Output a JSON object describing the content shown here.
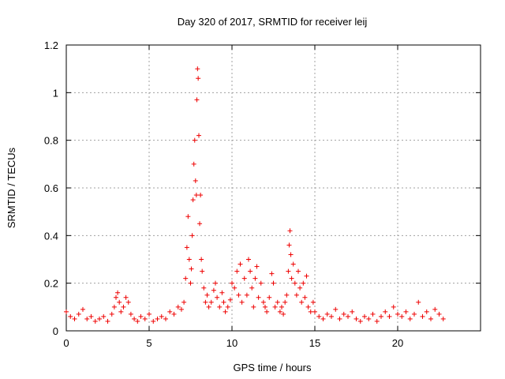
{
  "chart_data": {
    "type": "scatter",
    "title": "Day 320 of 2017, SRMTID for receiver leij",
    "xlabel": "GPS time / hours",
    "ylabel": "SRMTID / TECUs",
    "xlim": [
      0,
      25
    ],
    "ylim": [
      0,
      1.2
    ],
    "xticks": [
      0,
      5,
      10,
      15,
      20
    ],
    "xtick_labels": [
      "0",
      "5",
      "10",
      "15",
      "20"
    ],
    "yticks": [
      0,
      0.2,
      0.4,
      0.6,
      0.8,
      1.0,
      1.2
    ],
    "ytick_labels": [
      "0",
      "0.2",
      "0.4",
      "0.6",
      "0.8",
      "1",
      "1.2"
    ],
    "grid": true,
    "marker": "+",
    "color": "#ee0000",
    "series": [
      {
        "name": "SRMTID",
        "x": [
          0.0,
          0.25,
          0.5,
          0.75,
          1.0,
          1.25,
          1.5,
          1.75,
          2.0,
          2.25,
          2.5,
          2.75,
          2.9,
          3.0,
          3.1,
          3.2,
          3.3,
          3.45,
          3.6,
          3.75,
          3.9,
          4.1,
          4.3,
          4.5,
          4.75,
          5.0,
          5.25,
          5.5,
          5.75,
          6.0,
          6.25,
          6.5,
          6.75,
          6.95,
          7.1,
          7.2,
          7.28,
          7.35,
          7.42,
          7.5,
          7.55,
          7.6,
          7.65,
          7.7,
          7.75,
          7.8,
          7.85,
          7.88,
          7.92,
          7.96,
          8.0,
          8.05,
          8.1,
          8.15,
          8.2,
          8.3,
          8.4,
          8.5,
          8.6,
          8.75,
          8.9,
          9.0,
          9.1,
          9.25,
          9.4,
          9.5,
          9.6,
          9.75,
          9.9,
          10.0,
          10.15,
          10.3,
          10.4,
          10.5,
          10.6,
          10.75,
          10.9,
          11.0,
          11.1,
          11.2,
          11.3,
          11.4,
          11.5,
          11.6,
          11.75,
          11.9,
          12.0,
          12.1,
          12.25,
          12.4,
          12.5,
          12.6,
          12.75,
          12.9,
          13.0,
          13.1,
          13.2,
          13.3,
          13.4,
          13.45,
          13.5,
          13.55,
          13.6,
          13.7,
          13.8,
          13.9,
          14.0,
          14.1,
          14.2,
          14.3,
          14.4,
          14.5,
          14.6,
          14.75,
          14.9,
          15.0,
          15.25,
          15.5,
          15.75,
          16.0,
          16.25,
          16.5,
          16.75,
          17.0,
          17.25,
          17.5,
          17.75,
          18.0,
          18.25,
          18.5,
          18.75,
          19.0,
          19.25,
          19.5,
          19.75,
          20.0,
          20.25,
          20.5,
          20.75,
          21.0,
          21.25,
          21.5,
          21.75,
          22.0,
          22.25,
          22.5,
          22.75
        ],
        "y": [
          0.08,
          0.06,
          0.05,
          0.07,
          0.09,
          0.05,
          0.06,
          0.04,
          0.05,
          0.06,
          0.04,
          0.07,
          0.1,
          0.14,
          0.16,
          0.12,
          0.08,
          0.1,
          0.14,
          0.12,
          0.07,
          0.05,
          0.04,
          0.06,
          0.05,
          0.07,
          0.04,
          0.05,
          0.06,
          0.05,
          0.08,
          0.07,
          0.1,
          0.09,
          0.12,
          0.22,
          0.35,
          0.48,
          0.3,
          0.2,
          0.26,
          0.4,
          0.55,
          0.7,
          0.8,
          0.63,
          0.57,
          0.97,
          1.1,
          1.06,
          0.82,
          0.45,
          0.57,
          0.3,
          0.25,
          0.18,
          0.12,
          0.15,
          0.1,
          0.12,
          0.17,
          0.2,
          0.14,
          0.1,
          0.16,
          0.12,
          0.08,
          0.1,
          0.13,
          0.2,
          0.18,
          0.25,
          0.15,
          0.28,
          0.12,
          0.22,
          0.15,
          0.3,
          0.25,
          0.18,
          0.1,
          0.22,
          0.27,
          0.14,
          0.2,
          0.12,
          0.1,
          0.08,
          0.14,
          0.24,
          0.2,
          0.1,
          0.12,
          0.08,
          0.1,
          0.07,
          0.12,
          0.15,
          0.25,
          0.36,
          0.42,
          0.32,
          0.22,
          0.28,
          0.2,
          0.15,
          0.25,
          0.18,
          0.12,
          0.2,
          0.14,
          0.23,
          0.1,
          0.08,
          0.12,
          0.08,
          0.06,
          0.05,
          0.07,
          0.06,
          0.09,
          0.05,
          0.07,
          0.06,
          0.08,
          0.05,
          0.04,
          0.06,
          0.05,
          0.07,
          0.04,
          0.06,
          0.08,
          0.06,
          0.1,
          0.07,
          0.06,
          0.08,
          0.05,
          0.07,
          0.12,
          0.06,
          0.08,
          0.05,
          0.09,
          0.07,
          0.05
        ]
      }
    ]
  }
}
